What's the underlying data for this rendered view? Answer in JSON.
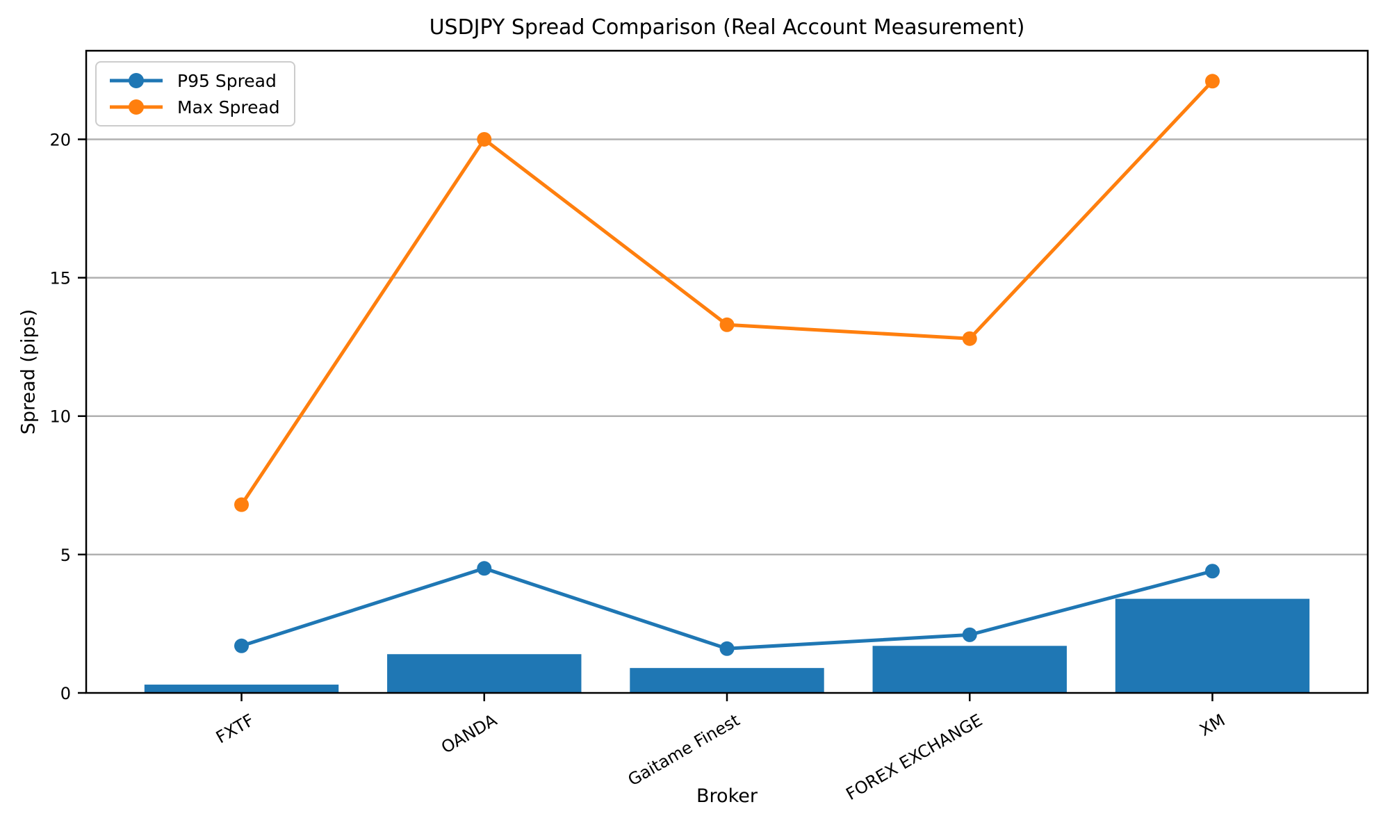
{
  "title": "USDJPY Spread Comparison (Real Account Measurement)",
  "chart_data": {
    "type": "bar",
    "title": "USDJPY Spread Comparison (Real Account Measurement)",
    "xlabel": "Broker",
    "ylabel": "Spread (pips)",
    "categories": [
      "FXTF",
      "OANDA",
      "Gaitame Finest",
      "FOREX EXCHANGE",
      "XM"
    ],
    "series": [
      {
        "name": "",
        "type": "bar",
        "color": "#1f77b4",
        "values": [
          0.3,
          1.4,
          0.9,
          1.7,
          3.4
        ]
      },
      {
        "name": "P95 Spread",
        "type": "line",
        "color": "#1f77b4",
        "values": [
          1.7,
          4.5,
          1.6,
          2.1,
          4.4
        ]
      },
      {
        "name": "Max Spread",
        "type": "line",
        "color": "#ff7f0e",
        "values": [
          6.8,
          20.0,
          13.3,
          12.8,
          22.1
        ]
      }
    ],
    "yticks": [
      0,
      5,
      10,
      15,
      20
    ],
    "ylim": [
      0,
      23.2
    ],
    "grid": "horizontal",
    "legend": {
      "position": "upper-left",
      "entries": [
        "P95 Spread",
        "Max Spread"
      ]
    },
    "colors": {
      "bar": "#1f77b4",
      "p95_line": "#1f77b4",
      "max_line": "#ff7f0e",
      "grid": "#b0b0b0",
      "axis": "#000000",
      "background": "#ffffff"
    }
  }
}
